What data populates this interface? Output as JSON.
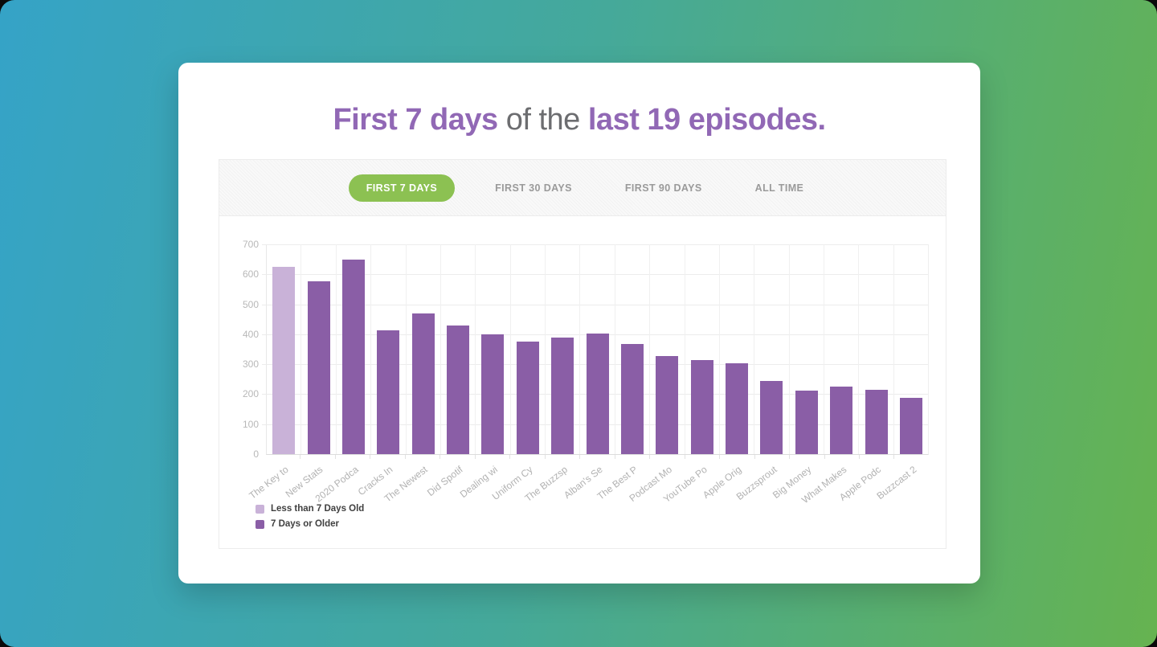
{
  "window": {
    "background_gradient": [
      "#35a3c7",
      "#66b350"
    ]
  },
  "title": {
    "part1": "First 7 days",
    "part2": " of the ",
    "part3": "last 19 episodes."
  },
  "tabs": [
    {
      "label": "FIRST 7 DAYS",
      "active": true
    },
    {
      "label": "FIRST 30 DAYS",
      "active": false
    },
    {
      "label": "FIRST 90 DAYS",
      "active": false
    },
    {
      "label": "ALL TIME",
      "active": false
    }
  ],
  "colors": {
    "active_tab_green": "#8cc152",
    "title_accent_purple": "#9168b5",
    "title_muted_gray": "#6c6d70",
    "bar_recent_light_purple": "#c9b2d8",
    "bar_older_dark_purple": "#8a5ea6"
  },
  "chart_data": {
    "type": "bar",
    "title": "First 7 days of the last 19 episodes.",
    "xlabel": "",
    "ylabel": "",
    "ylim": [
      0,
      700
    ],
    "yticks": [
      0,
      100,
      200,
      300,
      400,
      500,
      600,
      700
    ],
    "grid": true,
    "legend_position": "bottom-left",
    "legend": [
      {
        "label": "Less than 7 Days Old",
        "color": "#c9b2d8"
      },
      {
        "label": "7 Days or Older",
        "color": "#8a5ea6"
      }
    ],
    "points": [
      {
        "label": "The Key to",
        "value": 626,
        "group": "Less than 7 Days Old"
      },
      {
        "label": "New Stats",
        "value": 578,
        "group": "7 Days or Older"
      },
      {
        "label": "2020 Podca",
        "value": 648,
        "group": "7 Days or Older"
      },
      {
        "label": "Cracks In",
        "value": 413,
        "group": "7 Days or Older"
      },
      {
        "label": "The Newest",
        "value": 470,
        "group": "7 Days or Older"
      },
      {
        "label": "Did Spotif",
        "value": 428,
        "group": "7 Days or Older"
      },
      {
        "label": "Dealing wi",
        "value": 400,
        "group": "7 Days or Older"
      },
      {
        "label": "Uniform Cy",
        "value": 375,
        "group": "7 Days or Older"
      },
      {
        "label": "The Buzzsp",
        "value": 389,
        "group": "7 Days or Older"
      },
      {
        "label": "Alban's Se",
        "value": 401,
        "group": "7 Days or Older"
      },
      {
        "label": "The Best P",
        "value": 368,
        "group": "7 Days or Older"
      },
      {
        "label": "Podcast Mo",
        "value": 326,
        "group": "7 Days or Older"
      },
      {
        "label": "YouTube Po",
        "value": 313,
        "group": "7 Days or Older"
      },
      {
        "label": "Apple Orig",
        "value": 304,
        "group": "7 Days or Older"
      },
      {
        "label": "Buzzsprout",
        "value": 243,
        "group": "7 Days or Older"
      },
      {
        "label": "Big Money",
        "value": 211,
        "group": "7 Days or Older"
      },
      {
        "label": "What Makes",
        "value": 226,
        "group": "7 Days or Older"
      },
      {
        "label": "Apple Podc",
        "value": 215,
        "group": "7 Days or Older"
      },
      {
        "label": "Buzzcast 2",
        "value": 188,
        "group": "7 Days or Older"
      }
    ]
  }
}
